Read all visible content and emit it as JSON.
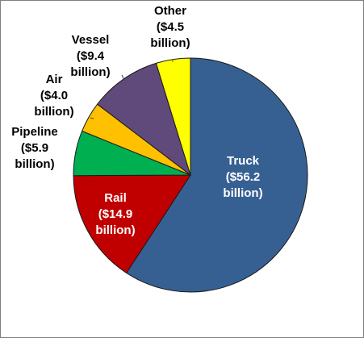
{
  "chart_data": {
    "type": "pie",
    "title": "",
    "slices": [
      {
        "name": "Truck",
        "value": 56.2,
        "color": "#376092",
        "label": [
          "Truck",
          "($56.2",
          "billion)"
        ]
      },
      {
        "name": "Rail",
        "value": 14.9,
        "color": "#c00000",
        "label": [
          "Rail",
          "($14.9",
          "billion)"
        ]
      },
      {
        "name": "Pipeline",
        "value": 5.9,
        "color": "#00b050",
        "label": [
          "Pipeline",
          "($5.9",
          "billion)"
        ]
      },
      {
        "name": "Air",
        "value": 4.0,
        "color": "#ffc000",
        "label": [
          "Air",
          "($4.0",
          "billion)"
        ]
      },
      {
        "name": "Vessel",
        "value": 9.4,
        "color": "#604a7b",
        "label": [
          "Vessel",
          "($9.4",
          "billion)"
        ]
      },
      {
        "name": "Other",
        "value": 4.5,
        "color": "#ffff00",
        "label": [
          "Other",
          "($4.5",
          "billion)"
        ]
      }
    ],
    "start_angle": "12 o'clock",
    "direction": "clockwise",
    "legend": "none"
  }
}
